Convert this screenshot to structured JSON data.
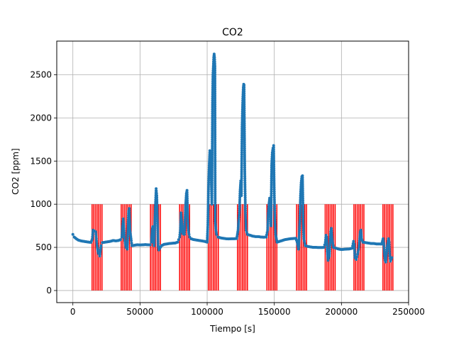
{
  "chart_data": {
    "type": "scatter",
    "title": "CO2",
    "xlabel": "Tiempo [s]",
    "ylabel": "CO2 [ppm]",
    "xlim": [
      -12000,
      250000
    ],
    "ylim": [
      -140,
      2890
    ],
    "xticks": [
      0,
      50000,
      100000,
      150000,
      200000,
      250000
    ],
    "xtick_labels": [
      "0",
      "50000",
      "100000",
      "150000",
      "200000",
      "250000"
    ],
    "yticks": [
      0,
      500,
      1000,
      1500,
      2000,
      2500
    ],
    "ytick_labels": [
      "0",
      "500",
      "1000",
      "1500",
      "2000",
      "2500"
    ],
    "grid": true,
    "point_color": "#1f77b4",
    "marker_line_color": "#ff0000",
    "series": [
      {
        "values_xy": [
          [
            0,
            650
          ],
          [
            1000,
            620
          ],
          [
            2500,
            600
          ],
          [
            4000,
            585
          ],
          [
            6000,
            575
          ],
          [
            8000,
            570
          ],
          [
            10000,
            565
          ],
          [
            12000,
            560
          ],
          [
            13500,
            558
          ],
          [
            14500,
            600
          ],
          [
            15000,
            700
          ],
          [
            16000,
            690
          ],
          [
            17000,
            680
          ],
          [
            18000,
            520
          ],
          [
            19000,
            430
          ],
          [
            20000,
            400
          ],
          [
            21000,
            520
          ],
          [
            22000,
            555
          ],
          [
            24000,
            560
          ],
          [
            26000,
            565
          ],
          [
            28000,
            570
          ],
          [
            30000,
            580
          ],
          [
            32000,
            575
          ],
          [
            34000,
            580
          ],
          [
            35500,
            590
          ],
          [
            36500,
            620
          ],
          [
            37000,
            750
          ],
          [
            37500,
            830
          ],
          [
            38000,
            720
          ],
          [
            38500,
            600
          ],
          [
            39500,
            500
          ],
          [
            40500,
            480
          ],
          [
            41500,
            920
          ],
          [
            42000,
            950
          ],
          [
            42500,
            700
          ],
          [
            43500,
            580
          ],
          [
            44000,
            520
          ],
          [
            46000,
            525
          ],
          [
            48000,
            530
          ],
          [
            50000,
            528
          ],
          [
            52000,
            530
          ],
          [
            54000,
            532
          ],
          [
            56000,
            530
          ],
          [
            57500,
            528
          ],
          [
            58500,
            560
          ],
          [
            59000,
            700
          ],
          [
            59500,
            740
          ],
          [
            60000,
            650
          ],
          [
            60500,
            520
          ],
          [
            61000,
            780
          ],
          [
            61500,
            1000
          ],
          [
            62000,
            1180
          ],
          [
            62500,
            1100
          ],
          [
            63000,
            800
          ],
          [
            63500,
            520
          ],
          [
            64000,
            470
          ],
          [
            66000,
            520
          ],
          [
            68000,
            535
          ],
          [
            70000,
            540
          ],
          [
            72000,
            545
          ],
          [
            74000,
            548
          ],
          [
            76000,
            550
          ],
          [
            78000,
            560
          ],
          [
            79500,
            620
          ],
          [
            80000,
            700
          ],
          [
            80500,
            900
          ],
          [
            81000,
            800
          ],
          [
            81500,
            700
          ],
          [
            82000,
            660
          ],
          [
            83000,
            650
          ],
          [
            84000,
            1000
          ],
          [
            84500,
            1120
          ],
          [
            85000,
            1160
          ],
          [
            85500,
            850
          ],
          [
            86000,
            700
          ],
          [
            86500,
            650
          ],
          [
            87000,
            620
          ],
          [
            88000,
            600
          ],
          [
            90000,
            590
          ],
          [
            92000,
            585
          ],
          [
            94000,
            580
          ],
          [
            96000,
            575
          ],
          [
            98000,
            570
          ],
          [
            100000,
            560
          ],
          [
            100500,
            760
          ],
          [
            101000,
            1200
          ],
          [
            101500,
            1450
          ],
          [
            102000,
            1620
          ],
          [
            102500,
            1550
          ],
          [
            103000,
            1300
          ],
          [
            103500,
            1000
          ],
          [
            103800,
            1700
          ],
          [
            104000,
            2200
          ],
          [
            104300,
            2500
          ],
          [
            104600,
            2600
          ],
          [
            104900,
            2700
          ],
          [
            105200,
            2740
          ],
          [
            105500,
            2700
          ],
          [
            105800,
            2600
          ],
          [
            106000,
            800
          ],
          [
            106500,
            700
          ],
          [
            107000,
            650
          ],
          [
            108000,
            620
          ],
          [
            110000,
            610
          ],
          [
            112000,
            605
          ],
          [
            114000,
            600
          ],
          [
            116000,
            598
          ],
          [
            118000,
            600
          ],
          [
            120000,
            600
          ],
          [
            122000,
            602
          ],
          [
            123000,
            700
          ],
          [
            123500,
            820
          ],
          [
            124000,
            900
          ],
          [
            124500,
            1150
          ],
          [
            125000,
            1270
          ],
          [
            125500,
            1100
          ],
          [
            126000,
            1900
          ],
          [
            126300,
            2100
          ],
          [
            126600,
            2250
          ],
          [
            126900,
            2350
          ],
          [
            127200,
            2390
          ],
          [
            127500,
            2380
          ],
          [
            128000,
            1400
          ],
          [
            128500,
            900
          ],
          [
            129000,
            700
          ],
          [
            130000,
            650
          ],
          [
            132000,
            640
          ],
          [
            134000,
            630
          ],
          [
            136000,
            625
          ],
          [
            138000,
            625
          ],
          [
            140000,
            620
          ],
          [
            142000,
            618
          ],
          [
            144000,
            620
          ],
          [
            145000,
            700
          ],
          [
            145500,
            900
          ],
          [
            146000,
            1000
          ],
          [
            146500,
            1070
          ],
          [
            147000,
            900
          ],
          [
            147500,
            750
          ],
          [
            148000,
            1450
          ],
          [
            148500,
            1600
          ],
          [
            149000,
            1650
          ],
          [
            149500,
            1680
          ],
          [
            150000,
            1100
          ],
          [
            150500,
            800
          ],
          [
            151000,
            650
          ],
          [
            152000,
            560
          ],
          [
            154000,
            570
          ],
          [
            156000,
            580
          ],
          [
            158000,
            590
          ],
          [
            160000,
            595
          ],
          [
            162000,
            600
          ],
          [
            164000,
            602
          ],
          [
            166000,
            605
          ],
          [
            167000,
            560
          ],
          [
            168000,
            480
          ],
          [
            168500,
            620
          ],
          [
            169000,
            820
          ],
          [
            169500,
            1100
          ],
          [
            170000,
            1250
          ],
          [
            170500,
            1320
          ],
          [
            171000,
            1330
          ],
          [
            171500,
            800
          ],
          [
            172000,
            600
          ],
          [
            173000,
            520
          ],
          [
            175000,
            510
          ],
          [
            177000,
            505
          ],
          [
            179000,
            500
          ],
          [
            181000,
            500
          ],
          [
            183000,
            498
          ],
          [
            185000,
            498
          ],
          [
            187000,
            500
          ],
          [
            188000,
            560
          ],
          [
            188500,
            640
          ],
          [
            189000,
            620
          ],
          [
            189500,
            450
          ],
          [
            190000,
            350
          ],
          [
            191000,
            400
          ],
          [
            192000,
            680
          ],
          [
            192500,
            720
          ],
          [
            193000,
            600
          ],
          [
            194000,
            500
          ],
          [
            196000,
            490
          ],
          [
            198000,
            480
          ],
          [
            200000,
            475
          ],
          [
            202000,
            478
          ],
          [
            204000,
            480
          ],
          [
            206000,
            482
          ],
          [
            208000,
            490
          ],
          [
            209000,
            570
          ],
          [
            209500,
            540
          ],
          [
            210000,
            380
          ],
          [
            211000,
            360
          ],
          [
            212000,
            420
          ],
          [
            213000,
            500
          ],
          [
            214000,
            680
          ],
          [
            214500,
            700
          ],
          [
            215000,
            600
          ],
          [
            216000,
            560
          ],
          [
            218000,
            555
          ],
          [
            220000,
            550
          ],
          [
            222000,
            545
          ],
          [
            224000,
            545
          ],
          [
            226000,
            540
          ],
          [
            228000,
            540
          ],
          [
            230000,
            538
          ],
          [
            231000,
            600
          ],
          [
            231500,
            550
          ],
          [
            232000,
            420
          ],
          [
            232500,
            350
          ],
          [
            233000,
            330
          ],
          [
            234000,
            500
          ],
          [
            235000,
            600
          ],
          [
            235500,
            560
          ],
          [
            236000,
            400
          ],
          [
            236500,
            340
          ],
          [
            237000,
            360
          ],
          [
            237500,
            380
          ]
        ]
      }
    ],
    "marker_groups": [
      [
        14300,
        21700
      ],
      [
        36000,
        43400
      ],
      [
        57800,
        65200
      ],
      [
        79500,
        86900
      ],
      [
        100900,
        108300
      ],
      [
        122600,
        130000
      ],
      [
        144500,
        151900
      ],
      [
        166600,
        174000
      ],
      [
        187900,
        195300
      ],
      [
        209300,
        216700
      ],
      [
        230900,
        238300
      ]
    ],
    "marker_lines_per_group": 7,
    "marker_height": 1000
  }
}
